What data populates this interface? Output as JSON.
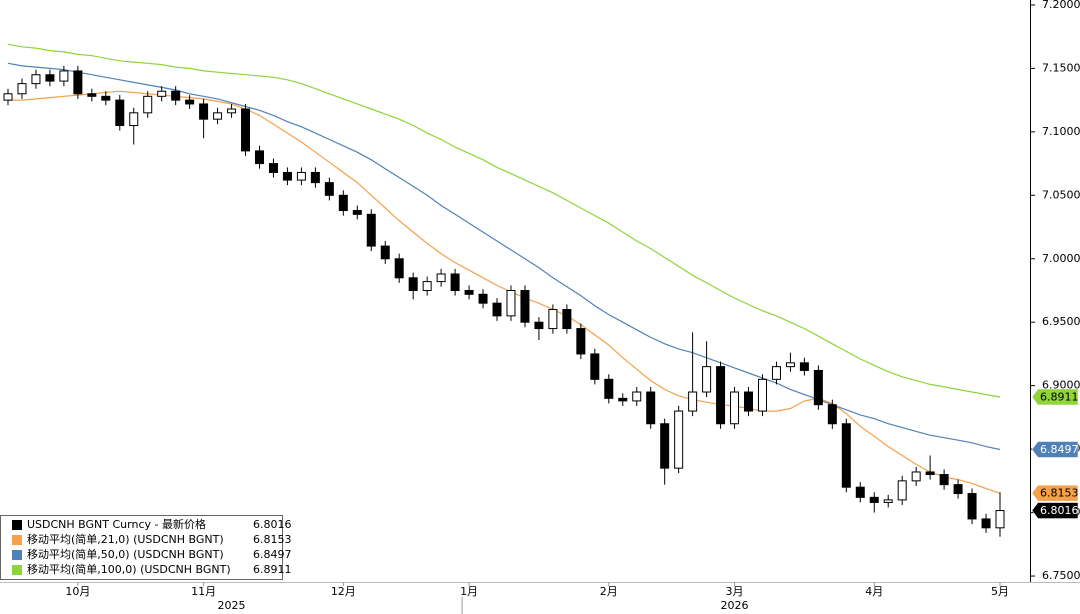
{
  "chart_data": {
    "type": "candlestick",
    "categories": [
      null,
      null,
      null,
      null,
      null,
      "10月",
      null,
      null,
      null,
      null,
      null,
      null,
      null,
      null,
      "11月",
      null,
      null,
      null,
      null,
      null,
      null,
      null,
      null,
      null,
      "12月",
      null,
      null,
      null,
      null,
      null,
      null,
      null,
      null,
      "1月",
      null,
      null,
      null,
      null,
      null,
      null,
      null,
      null,
      null,
      "2月",
      null,
      null,
      null,
      null,
      null,
      null,
      null,
      null,
      "3月",
      null,
      null,
      null,
      null,
      null,
      null,
      null,
      null,
      null,
      "4月",
      null,
      null,
      null,
      null,
      null,
      null,
      null,
      null,
      "5月"
    ],
    "year_groups": [
      {
        "label": "2025",
        "start": 0
      },
      {
        "label": "2026",
        "start": 33
      }
    ],
    "candles": {
      "name": "USDCNH BGNT Curncy - 最新价格",
      "color": "#000000",
      "open": [
        7.125,
        7.13,
        7.138,
        7.145,
        7.14,
        7.148,
        7.13,
        7.128,
        7.125,
        7.105,
        7.115,
        7.128,
        7.132,
        7.125,
        7.122,
        7.11,
        7.115,
        7.118,
        7.085,
        7.075,
        7.068,
        7.062,
        7.068,
        7.06,
        7.05,
        7.038,
        7.035,
        7.01,
        7.0,
        6.985,
        6.975,
        6.982,
        6.988,
        6.975,
        6.972,
        6.965,
        6.955,
        6.975,
        6.95,
        6.945,
        6.96,
        6.945,
        6.925,
        6.905,
        6.89,
        6.888,
        6.895,
        6.87,
        6.835,
        6.88,
        6.895,
        6.915,
        6.87,
        6.895,
        6.88,
        6.905,
        6.915,
        6.918,
        6.912,
        6.885,
        6.87,
        6.82,
        6.812,
        6.808,
        6.81,
        6.825,
        6.832,
        6.83,
        6.822,
        6.815,
        6.795,
        6.788
      ],
      "high": [
        7.134,
        7.142,
        7.149,
        7.149,
        7.152,
        7.152,
        7.134,
        7.132,
        7.129,
        7.119,
        7.132,
        7.136,
        7.136,
        7.129,
        7.126,
        7.119,
        7.122,
        7.122,
        7.089,
        7.079,
        7.072,
        7.072,
        7.072,
        7.064,
        7.054,
        7.042,
        7.039,
        7.014,
        7.004,
        6.989,
        6.986,
        6.992,
        6.992,
        6.979,
        6.976,
        6.969,
        6.979,
        6.979,
        6.954,
        6.964,
        6.964,
        6.949,
        6.929,
        6.909,
        6.894,
        6.899,
        6.899,
        6.874,
        6.884,
        6.942,
        6.935,
        6.919,
        6.899,
        6.899,
        6.909,
        6.919,
        6.926,
        6.922,
        6.916,
        6.889,
        6.874,
        6.824,
        6.816,
        6.814,
        6.829,
        6.836,
        6.845,
        6.834,
        6.826,
        6.819,
        6.799,
        6.816
      ],
      "low": [
        7.121,
        7.126,
        7.134,
        7.136,
        7.136,
        7.126,
        7.124,
        7.121,
        7.101,
        7.09,
        7.111,
        7.124,
        7.121,
        7.118,
        7.095,
        7.106,
        7.111,
        7.081,
        7.071,
        7.064,
        7.058,
        7.058,
        7.056,
        7.046,
        7.034,
        7.031,
        7.006,
        6.996,
        6.981,
        6.968,
        6.971,
        6.978,
        6.971,
        6.968,
        6.961,
        6.951,
        6.951,
        6.946,
        6.936,
        6.941,
        6.941,
        6.921,
        6.901,
        6.886,
        6.884,
        6.884,
        6.866,
        6.822,
        6.831,
        6.876,
        6.891,
        6.866,
        6.866,
        6.876,
        6.876,
        6.901,
        6.911,
        6.908,
        6.881,
        6.866,
        6.816,
        6.808,
        6.8,
        6.804,
        6.806,
        6.821,
        6.826,
        6.818,
        6.811,
        6.791,
        6.784,
        6.781
      ],
      "close": [
        7.13,
        7.138,
        7.145,
        7.14,
        7.148,
        7.13,
        7.128,
        7.125,
        7.105,
        7.115,
        7.128,
        7.132,
        7.125,
        7.122,
        7.11,
        7.115,
        7.118,
        7.085,
        7.075,
        7.068,
        7.062,
        7.068,
        7.06,
        7.05,
        7.038,
        7.035,
        7.01,
        7.0,
        6.985,
        6.975,
        6.982,
        6.988,
        6.975,
        6.972,
        6.965,
        6.955,
        6.975,
        6.95,
        6.945,
        6.96,
        6.945,
        6.925,
        6.905,
        6.89,
        6.888,
        6.895,
        6.87,
        6.835,
        6.88,
        6.895,
        6.915,
        6.87,
        6.895,
        6.88,
        6.905,
        6.915,
        6.918,
        6.912,
        6.885,
        6.87,
        6.82,
        6.812,
        6.808,
        6.81,
        6.825,
        6.832,
        6.83,
        6.822,
        6.815,
        6.795,
        6.788,
        6.8016
      ]
    },
    "series": [
      {
        "name": "移动平均(简单,21,0) (USDCNH BGNT)",
        "color": "#f5a04a",
        "values": [
          7.125,
          7.125,
          7.126,
          7.127,
          7.128,
          7.129,
          7.13,
          7.131,
          7.132,
          7.131,
          7.13,
          7.129,
          7.128,
          7.127,
          7.126,
          7.124,
          7.122,
          7.118,
          7.113,
          7.106,
          7.099,
          7.092,
          7.084,
          7.076,
          7.068,
          7.06,
          7.05,
          7.04,
          7.03,
          7.021,
          7.012,
          7.004,
          6.997,
          6.991,
          6.985,
          6.979,
          6.974,
          6.969,
          6.965,
          6.96,
          6.955,
          6.948,
          6.94,
          6.932,
          6.922,
          6.913,
          6.904,
          6.897,
          6.892,
          6.889,
          6.887,
          6.885,
          6.884,
          6.882,
          6.88,
          6.88,
          6.882,
          6.888,
          6.89,
          6.886,
          6.878,
          6.868,
          6.86,
          6.852,
          6.845,
          6.838,
          6.832,
          6.828,
          6.826,
          6.823,
          6.819,
          6.8153
        ]
      },
      {
        "name": "移动平均(简单,50,0) (USDCNH BGNT)",
        "color": "#4f81b8",
        "values": [
          7.154,
          7.152,
          7.151,
          7.15,
          7.149,
          7.147,
          7.145,
          7.143,
          7.141,
          7.139,
          7.137,
          7.135,
          7.133,
          7.13,
          7.128,
          7.126,
          7.123,
          7.12,
          7.117,
          7.113,
          7.108,
          7.104,
          7.099,
          7.094,
          7.089,
          7.084,
          7.078,
          7.071,
          7.064,
          7.057,
          7.05,
          7.042,
          7.035,
          7.028,
          7.021,
          7.014,
          7.007,
          7.0,
          6.993,
          6.985,
          6.978,
          6.971,
          6.963,
          6.956,
          6.95,
          6.944,
          6.938,
          6.933,
          6.929,
          6.926,
          6.922,
          6.918,
          6.914,
          6.91,
          6.906,
          6.902,
          6.897,
          6.893,
          6.889,
          6.885,
          6.881,
          6.877,
          6.874,
          6.87,
          6.867,
          6.864,
          6.861,
          6.859,
          6.857,
          6.855,
          6.852,
          6.8497
        ]
      },
      {
        "name": "移动平均(简单,100,0) (USDCNH BGNT)",
        "color": "#8fd43a",
        "values": [
          7.169,
          7.167,
          7.166,
          7.164,
          7.163,
          7.161,
          7.16,
          7.158,
          7.156,
          7.155,
          7.154,
          7.153,
          7.151,
          7.15,
          7.148,
          7.147,
          7.146,
          7.145,
          7.144,
          7.143,
          7.141,
          7.138,
          7.134,
          7.13,
          7.126,
          7.122,
          7.118,
          7.114,
          7.11,
          7.105,
          7.099,
          7.094,
          7.088,
          7.083,
          7.078,
          7.072,
          7.067,
          7.062,
          7.057,
          7.052,
          7.046,
          7.04,
          7.034,
          7.028,
          7.021,
          7.014,
          7.008,
          7.001,
          6.994,
          6.987,
          6.981,
          6.975,
          6.969,
          6.964,
          6.959,
          6.955,
          6.95,
          6.945,
          6.939,
          6.933,
          6.927,
          6.921,
          6.916,
          6.911,
          6.907,
          6.904,
          6.901,
          6.899,
          6.897,
          6.895,
          6.893,
          6.8911
        ]
      }
    ],
    "ylim": [
      6.7453,
      7.2039
    ],
    "yticks": [
      {
        "value": 6.75,
        "label": "6.7500"
      },
      {
        "value": 6.8,
        "label": "6.8000"
      },
      {
        "value": 6.85,
        "label": "6.8500"
      },
      {
        "value": 6.9,
        "label": "6.9000"
      },
      {
        "value": 6.95,
        "label": "6.9500"
      },
      {
        "value": 7.0,
        "label": "7.0000"
      },
      {
        "value": 7.05,
        "label": "7.0500"
      },
      {
        "value": 7.1,
        "label": "7.1000"
      },
      {
        "value": 7.15,
        "label": "7.1500"
      },
      {
        "value": 7.2,
        "label": "7.2000"
      }
    ],
    "grid": false
  }
}
